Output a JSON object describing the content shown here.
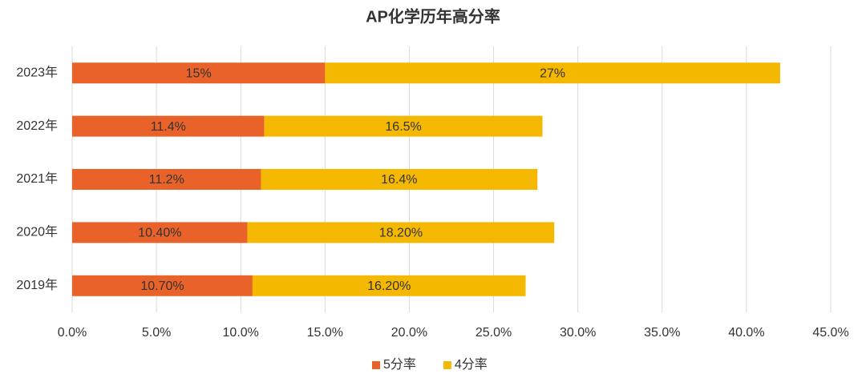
{
  "chart_data": {
    "type": "stacked-bar-horizontal",
    "title": "AP化学历年高分率",
    "categories": [
      "2023年",
      "2022年",
      "2021年",
      "2020年",
      "2019年"
    ],
    "series": [
      {
        "name": "5分率",
        "color": "#e8622a",
        "values": [
          15,
          11.4,
          11.2,
          10.4,
          10.7
        ],
        "value_labels": [
          "15%",
          "11.4%",
          "11.2%",
          "10.40%",
          "10.70%"
        ]
      },
      {
        "name": "4分率",
        "color": "#f5b800",
        "values": [
          27,
          16.5,
          16.4,
          18.2,
          16.2
        ],
        "value_labels": [
          "27%",
          "16.5%",
          "16.4%",
          "18.20%",
          "16.20%"
        ]
      }
    ],
    "xlim": [
      0,
      45
    ],
    "xticks": [
      {
        "value": 0,
        "label": "0.0%"
      },
      {
        "value": 5,
        "label": "5.0%"
      },
      {
        "value": 10,
        "label": "10.0%"
      },
      {
        "value": 15,
        "label": "15.0%"
      },
      {
        "value": 20,
        "label": "20.0%"
      },
      {
        "value": 25,
        "label": "25.0%"
      },
      {
        "value": 30,
        "label": "30.0%"
      },
      {
        "value": 35,
        "label": "35.0%"
      },
      {
        "value": 40,
        "label": "40.0%"
      },
      {
        "value": 45,
        "label": "45.0%"
      }
    ],
    "grid": true,
    "legend": "bottom"
  }
}
